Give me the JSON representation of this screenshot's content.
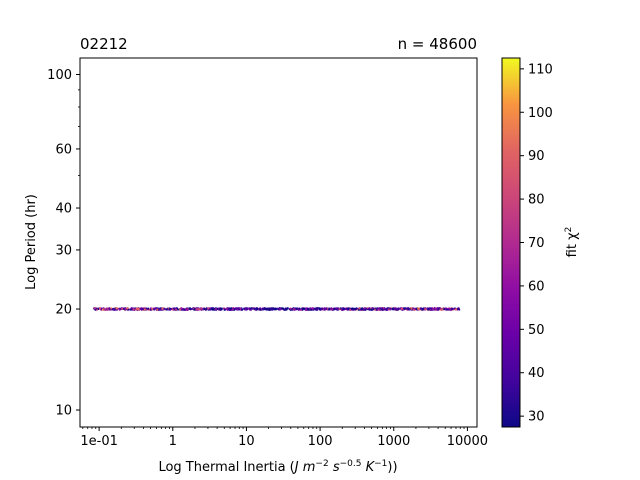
{
  "chart_data": {
    "type": "scatter",
    "title_left": "02212",
    "title_right": "n = 48600",
    "xlabel": {
      "prefix": "Log Thermal Inertia (",
      "units": [
        {
          "base": "J m",
          "sup": "−2"
        },
        {
          "base": " s",
          "sup": "−0.5"
        },
        {
          "base": " K",
          "sup": "−1"
        }
      ],
      "suffix": "))"
    },
    "ylabel": "Log Period (hr)",
    "xscale": "log",
    "yscale": "log",
    "xlim": [
      0.055,
      13500
    ],
    "ylim": [
      8.9,
      112
    ],
    "x_ticks": [
      {
        "value": 0.1,
        "label": "1e-01"
      },
      {
        "value": 1,
        "label": "1"
      },
      {
        "value": 10,
        "label": "10"
      },
      {
        "value": 100,
        "label": "100"
      },
      {
        "value": 1000,
        "label": "1000"
      },
      {
        "value": 10000,
        "label": "10000"
      }
    ],
    "y_ticks": [
      {
        "value": 10,
        "label": "10"
      },
      {
        "value": 20,
        "label": "20"
      },
      {
        "value": 30,
        "label": "30"
      },
      {
        "value": 40,
        "label": "40"
      },
      {
        "value": 60,
        "label": "60"
      },
      {
        "value": 100,
        "label": "100"
      }
    ],
    "y_minor_ticks": [
      50,
      70,
      80,
      90
    ],
    "points": {
      "x_range": [
        0.085,
        7800
      ],
      "y_value": 20,
      "chi2_range": [
        28,
        112
      ],
      "n": 48600
    },
    "colorbar": {
      "label_base": "fit χ",
      "label_sup": "2",
      "colormap": "plasma",
      "range": [
        27.5,
        112.5
      ],
      "ticks": [
        30,
        40,
        50,
        60,
        70,
        80,
        90,
        100,
        110
      ]
    },
    "grid": false
  }
}
